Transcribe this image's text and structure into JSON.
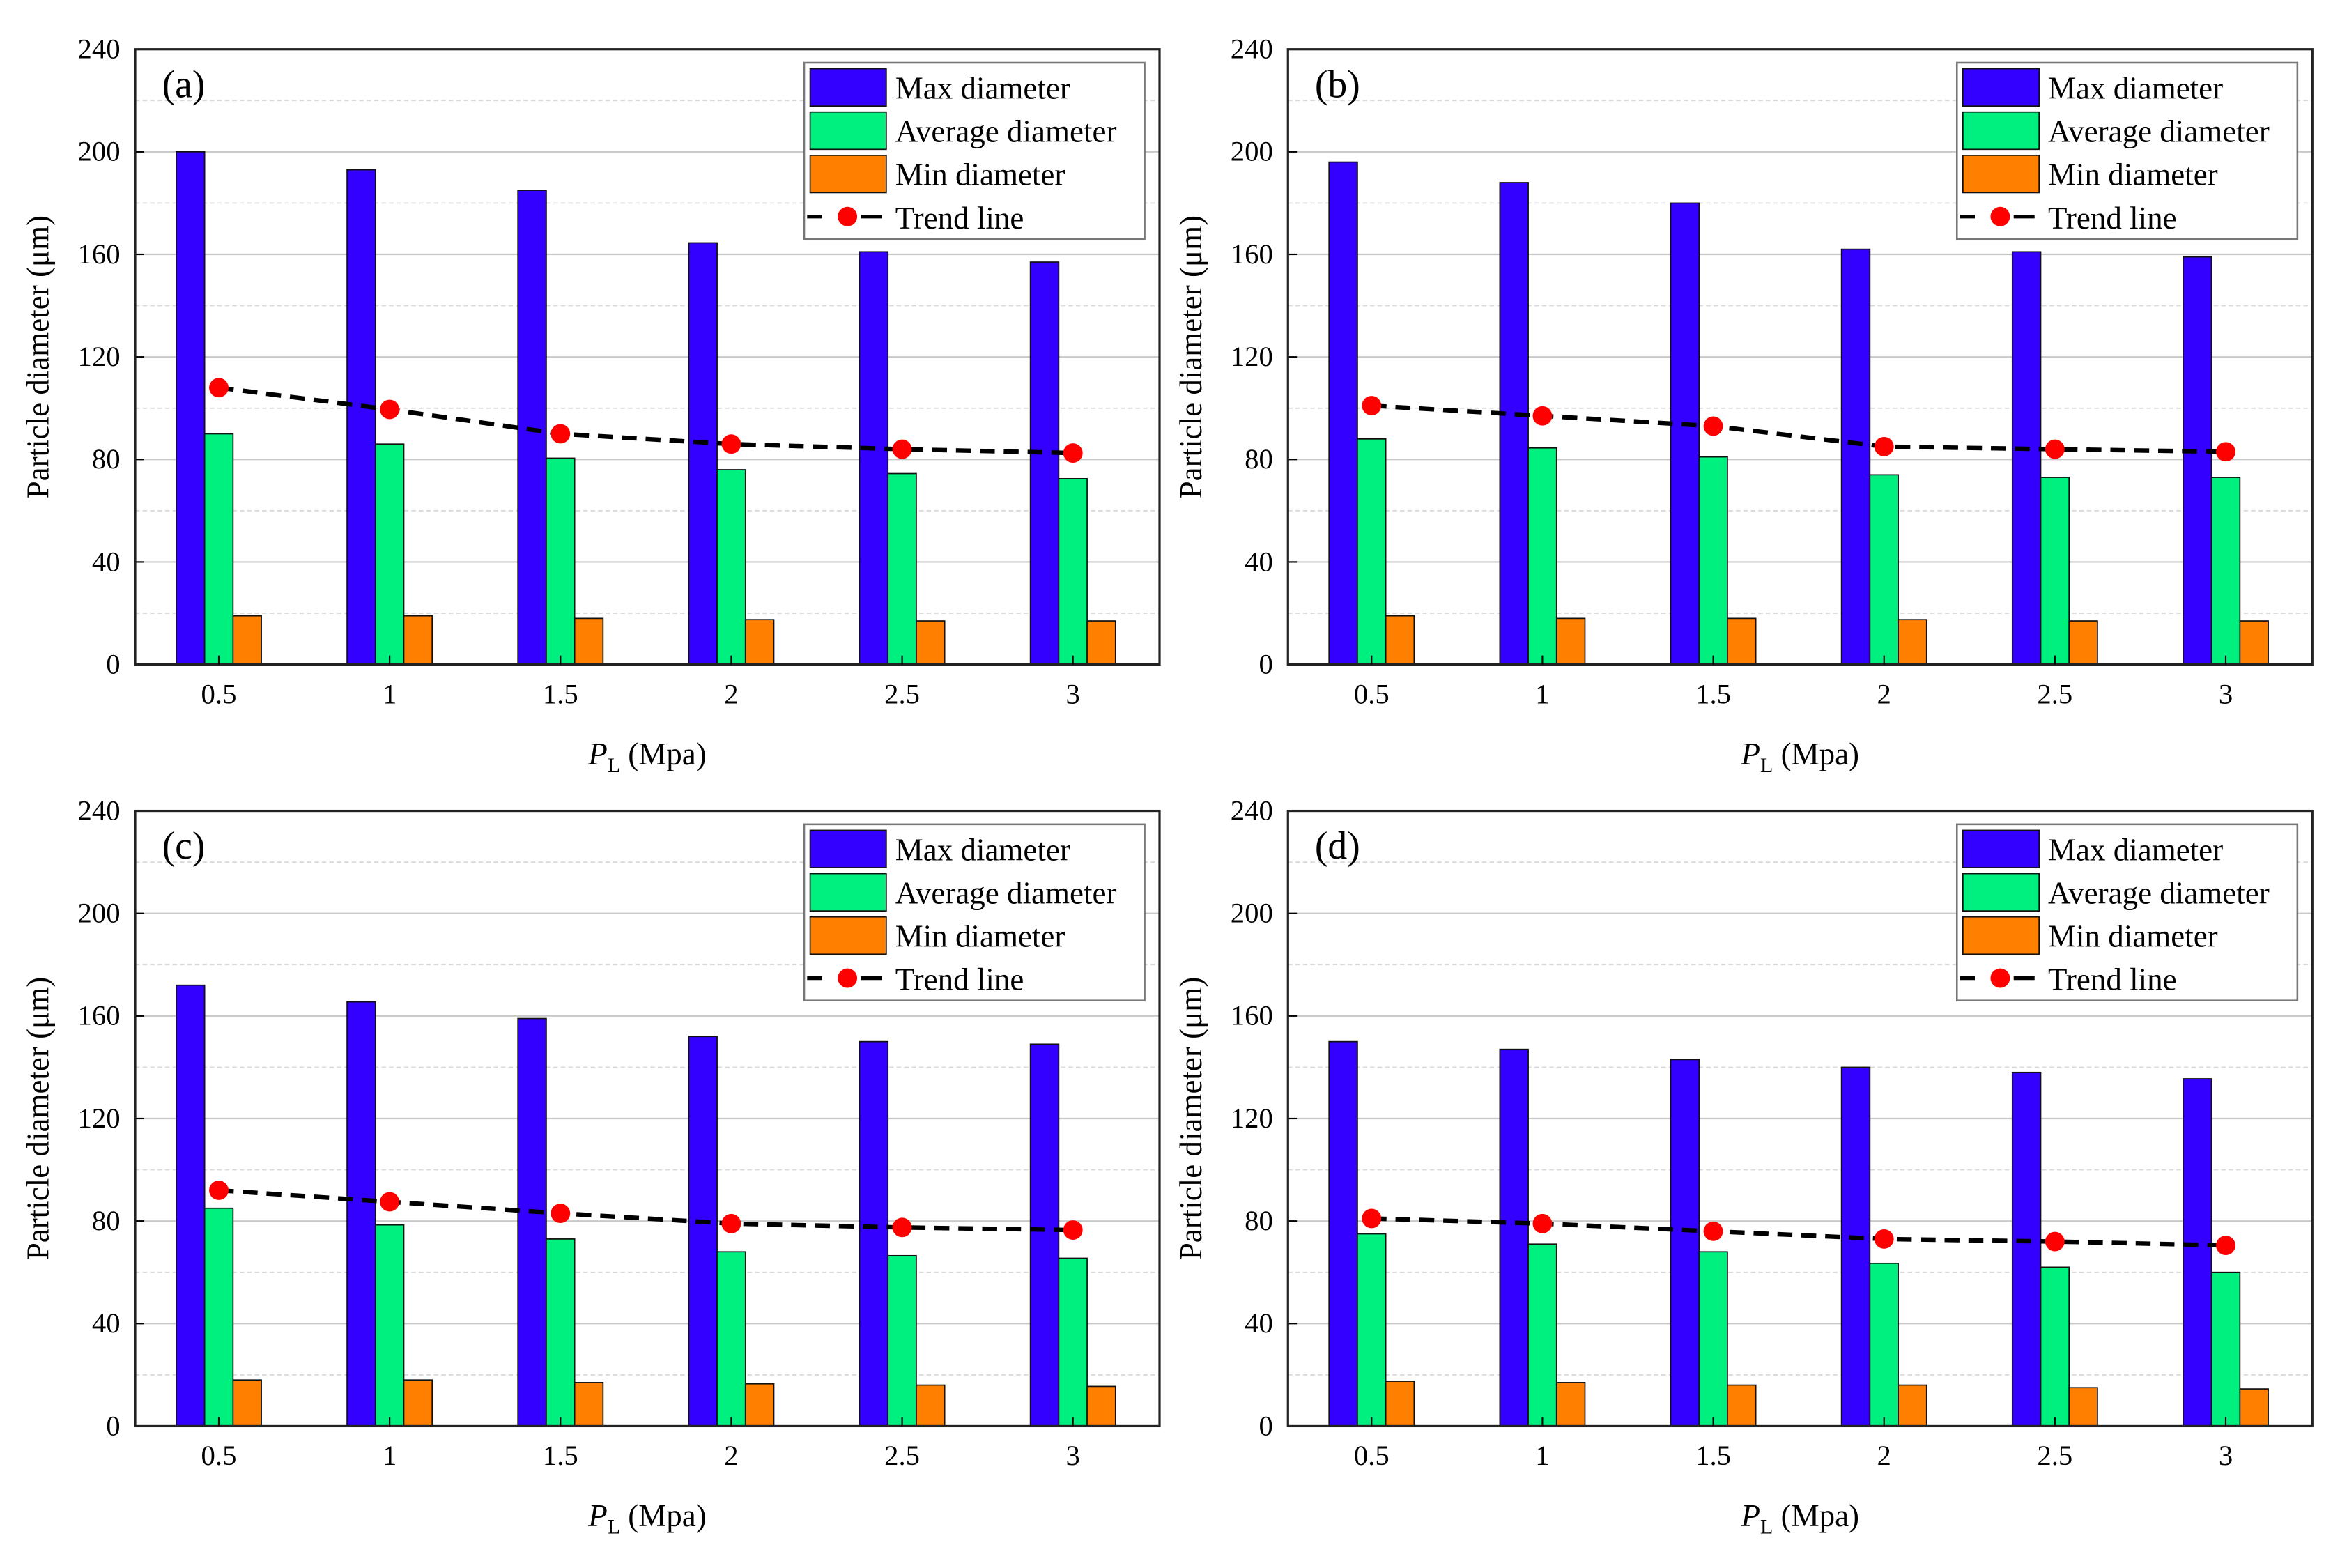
{
  "colors": {
    "max": "#3300ff",
    "avg": "#00f080",
    "min": "#ff8000",
    "trend_marker": "#ff0000",
    "trend_line": "#000000"
  },
  "legend": [
    "Max diameter",
    "Average diameter",
    "Min diameter",
    "Trend line"
  ],
  "chart_data": [
    {
      "type": "bar",
      "panel_label": "(a)",
      "categories": [
        "0.5",
        "1",
        "1.5",
        "2",
        "2.5",
        "3"
      ],
      "xlabel_italic": "P",
      "xlabel_sub": "L",
      "xlabel_rest": " (Mpa)",
      "ylabel": "Particle diameter (μm)",
      "ylim": [
        0,
        240
      ],
      "yticks": [
        0,
        40,
        80,
        120,
        160,
        200,
        240
      ],
      "grid": true,
      "legend_position": "top-right",
      "series": [
        {
          "name": "Max diameter",
          "values": [
            200,
            193,
            185,
            164.5,
            161,
            157
          ]
        },
        {
          "name": "Average diameter",
          "values": [
            90,
            86,
            80.5,
            76,
            74.5,
            72.5
          ]
        },
        {
          "name": "Min diameter",
          "values": [
            19,
            19,
            18,
            17.5,
            17,
            17
          ]
        },
        {
          "name": "Trend line",
          "values": [
            108,
            99.5,
            90,
            86,
            84,
            82.5
          ]
        }
      ]
    },
    {
      "type": "bar",
      "panel_label": "(b)",
      "categories": [
        "0.5",
        "1",
        "1.5",
        "2",
        "2.5",
        "3"
      ],
      "xlabel_italic": "P",
      "xlabel_sub": "L",
      "xlabel_rest": " (Mpa)",
      "ylabel": "Particle diameter (μm)",
      "ylim": [
        0,
        240
      ],
      "yticks": [
        0,
        40,
        80,
        120,
        160,
        200,
        240
      ],
      "grid": true,
      "legend_position": "top-right",
      "series": [
        {
          "name": "Max diameter",
          "values": [
            196,
            188,
            180,
            162,
            161,
            159
          ]
        },
        {
          "name": "Average diameter",
          "values": [
            88,
            84.5,
            81,
            74,
            73,
            73
          ]
        },
        {
          "name": "Min diameter",
          "values": [
            19,
            18,
            18,
            17.5,
            17,
            17
          ]
        },
        {
          "name": "Trend line",
          "values": [
            101,
            97,
            93,
            85,
            84,
            83
          ]
        }
      ]
    },
    {
      "type": "bar",
      "panel_label": "(c)",
      "categories": [
        "0.5",
        "1",
        "1.5",
        "2",
        "2.5",
        "3"
      ],
      "xlabel_italic": "P",
      "xlabel_sub": "L",
      "xlabel_rest": " (Mpa)",
      "ylabel": "Particle diameter (μm)",
      "ylim": [
        0,
        240
      ],
      "yticks": [
        0,
        40,
        80,
        120,
        160,
        200,
        240
      ],
      "grid": true,
      "legend_position": "top-right",
      "series": [
        {
          "name": "Max diameter",
          "values": [
            172,
            165.5,
            159,
            152,
            150,
            149
          ]
        },
        {
          "name": "Average diameter",
          "values": [
            85,
            78.5,
            73,
            68,
            66.5,
            65.5
          ]
        },
        {
          "name": "Min diameter",
          "values": [
            18,
            18,
            17,
            16.5,
            16,
            15.5
          ]
        },
        {
          "name": "Trend line",
          "values": [
            92,
            87.5,
            83,
            79,
            77.5,
            76.5
          ]
        }
      ]
    },
    {
      "type": "bar",
      "panel_label": "(d)",
      "categories": [
        "0.5",
        "1",
        "1.5",
        "2",
        "2.5",
        "3"
      ],
      "xlabel_italic": "P",
      "xlabel_sub": "L",
      "xlabel_rest": " (Mpa)",
      "ylabel": "Particle diameter (μm)",
      "ylim": [
        0,
        240
      ],
      "yticks": [
        0,
        40,
        80,
        120,
        160,
        200,
        240
      ],
      "grid": true,
      "legend_position": "top-right",
      "series": [
        {
          "name": "Max diameter",
          "values": [
            150,
            147,
            143,
            140,
            138,
            135.5
          ]
        },
        {
          "name": "Average diameter",
          "values": [
            75,
            71,
            68,
            63.5,
            62,
            60
          ]
        },
        {
          "name": "Min diameter",
          "values": [
            17.5,
            17,
            16,
            16,
            15,
            14.5
          ]
        },
        {
          "name": "Trend line",
          "values": [
            81,
            79,
            76,
            73,
            72,
            70.5
          ]
        }
      ]
    }
  ]
}
